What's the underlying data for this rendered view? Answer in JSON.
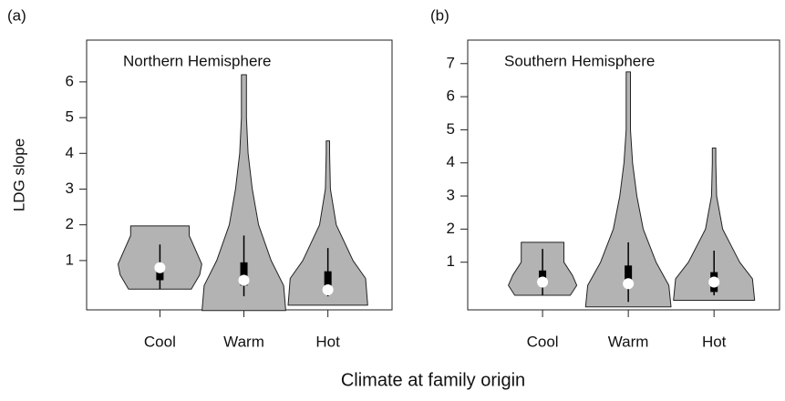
{
  "chart_data": [
    {
      "type": "violin",
      "panel_label": "(a)",
      "title": "Northern Hemisphere",
      "ylabel": "LDG slope",
      "xlabel": "Climate at family origin",
      "categories": [
        "Cool",
        "Warm",
        "Hot"
      ],
      "color": "#b3b3b3",
      "ylim": [
        -0.38,
        7.17
      ],
      "yticks": [
        1,
        2,
        3,
        4,
        5,
        6
      ],
      "violins": [
        {
          "y": [
            0.2,
            0.6,
            0.9,
            1.3,
            1.7,
            1.97
          ],
          "width": [
            0.75,
            0.95,
            1.0,
            0.85,
            0.7,
            0.7
          ],
          "whisker": [
            0.2,
            1.45
          ],
          "box": [
            0.45,
            0.85
          ],
          "median": 0.8
        },
        {
          "y": [
            -0.4,
            0.3,
            1,
            2,
            3,
            4,
            5,
            6.2
          ],
          "width": [
            1.0,
            0.95,
            0.65,
            0.35,
            0.2,
            0.1,
            0.06,
            0.06
          ],
          "whisker": [
            0,
            1.7
          ],
          "box": [
            0.3,
            0.95
          ],
          "median": 0.45
        },
        {
          "y": [
            -0.25,
            0.5,
            1,
            2,
            3,
            4,
            4.35
          ],
          "width": [
            0.95,
            0.9,
            0.6,
            0.2,
            0.06,
            0.04,
            0.04
          ],
          "whisker": [
            0,
            1.35
          ],
          "box": [
            0.1,
            0.7
          ],
          "median": 0.18
        }
      ]
    },
    {
      "type": "violin",
      "panel_label": "(b)",
      "title": "Southern Hemisphere",
      "categories": [
        "Cool",
        "Warm",
        "Hot"
      ],
      "color": "#b3b3b3",
      "ylim": [
        -0.44,
        7.71
      ],
      "yticks": [
        1,
        2,
        3,
        4,
        5,
        6,
        7
      ],
      "violins": [
        {
          "y": [
            0,
            0.3,
            0.6,
            1,
            1.6
          ],
          "width": [
            0.65,
            0.8,
            0.7,
            0.5,
            0.5
          ],
          "whisker": [
            0,
            1.4
          ],
          "box": [
            0.3,
            0.75
          ],
          "median": 0.4
        },
        {
          "y": [
            -0.35,
            0.3,
            1,
            2,
            3,
            4,
            5,
            6.75
          ],
          "width": [
            1.0,
            0.95,
            0.65,
            0.35,
            0.2,
            0.1,
            0.05,
            0.05
          ],
          "whisker": [
            -0.2,
            1.6
          ],
          "box": [
            0.25,
            0.9
          ],
          "median": 0.35
        },
        {
          "y": [
            -0.15,
            0.5,
            1,
            2,
            3,
            4,
            4.45
          ],
          "width": [
            0.95,
            0.9,
            0.6,
            0.2,
            0.06,
            0.04,
            0.04
          ],
          "whisker": [
            0,
            1.35
          ],
          "box": [
            0.1,
            0.7
          ],
          "median": 0.4
        }
      ]
    }
  ]
}
